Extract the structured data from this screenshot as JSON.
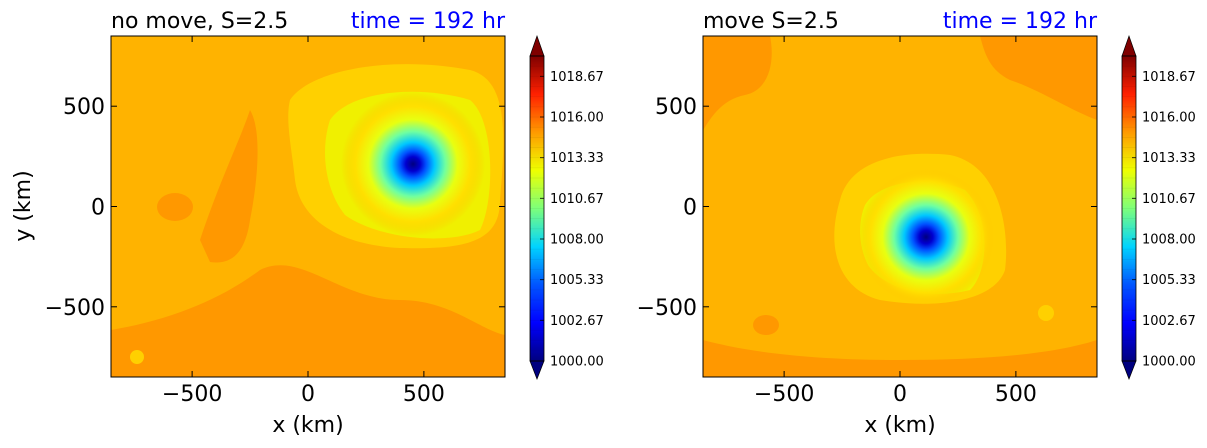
{
  "chart_data": [
    {
      "type": "heatmap",
      "subtype": "filled-contour",
      "title": "no move, S=2.5",
      "time_label": "time = 192 hr",
      "xlabel": "x (km)",
      "ylabel": "y (km)",
      "xlim": [
        -850,
        850
      ],
      "ylim": [
        -850,
        850
      ],
      "xticks": [
        -500,
        0,
        500
      ],
      "yticks": [
        -500,
        0,
        500
      ],
      "xtick_labels": [
        "−500",
        "0",
        "500"
      ],
      "ytick_labels": [
        "−500",
        "0",
        "500"
      ],
      "ambient_value": 1015.8,
      "low_center": [
        450,
        210
      ],
      "low_min_value": 1000.0,
      "colorbar": {
        "min": 1000.0,
        "max": 1020.0,
        "levels": 30,
        "tick_values": [
          1000.0,
          1002.67,
          1005.33,
          1008.0,
          1010.67,
          1013.33,
          1016.0,
          1018.67
        ],
        "tick_labels": [
          "1000.00",
          "1002.67",
          "1005.33",
          "1008.00",
          "1010.67",
          "1013.33",
          "1016.00",
          "1018.67"
        ]
      }
    },
    {
      "type": "heatmap",
      "subtype": "filled-contour",
      "title": "move S=2.5",
      "time_label": "time = 192 hr",
      "xlabel": "x (km)",
      "ylabel": "",
      "xlim": [
        -850,
        850
      ],
      "ylim": [
        -850,
        850
      ],
      "xticks": [
        -500,
        0,
        500
      ],
      "yticks": [
        -500,
        0,
        500
      ],
      "xtick_labels": [
        "−500",
        "0",
        "500"
      ],
      "ytick_labels": [
        "−500",
        "0",
        "500"
      ],
      "ambient_value": 1015.4,
      "low_center": [
        110,
        -150
      ],
      "low_min_value": 1000.0,
      "colorbar": {
        "min": 1000.0,
        "max": 1020.0,
        "levels": 30,
        "tick_values": [
          1000.0,
          1002.67,
          1005.33,
          1008.0,
          1010.67,
          1013.33,
          1016.0,
          1018.67
        ],
        "tick_labels": [
          "1000.00",
          "1002.67",
          "1005.33",
          "1008.00",
          "1010.67",
          "1013.33",
          "1016.00",
          "1018.67"
        ]
      }
    }
  ],
  "colors": {
    "title_text": "#000000",
    "time_text": "#0000ff",
    "background_pressure": "#ffa500",
    "outer_region": "#ff9200"
  }
}
